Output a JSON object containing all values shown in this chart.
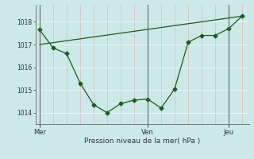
{
  "background_color": "#cce8e8",
  "grid_color_v": "#d8c0c0",
  "grid_color_h": "#e8f4f4",
  "line_color": "#1a5c1a",
  "xlabel": "Pression niveau de la mer( hPa )",
  "xtick_labels": [
    "Mer",
    "Ven",
    "Jeu"
  ],
  "xtick_positions": [
    0,
    8,
    14
  ],
  "ylim": [
    1013.5,
    1018.75
  ],
  "yticks": [
    1014,
    1015,
    1016,
    1017,
    1018
  ],
  "line1_x": [
    0,
    1,
    2,
    3,
    4,
    5,
    6,
    7,
    8,
    9,
    10,
    11,
    12,
    13,
    14,
    15
  ],
  "line1_y": [
    1017.65,
    1016.85,
    1016.6,
    1015.3,
    1014.35,
    1014.0,
    1014.4,
    1014.55,
    1014.6,
    1014.2,
    1015.05,
    1017.1,
    1017.4,
    1017.4,
    1017.7,
    1018.25
  ],
  "line2_x": [
    0,
    15
  ],
  "line2_y": [
    1017.0,
    1018.25
  ],
  "xlim": [
    -0.3,
    15.5
  ],
  "num_v_grid": 16,
  "figsize": [
    3.2,
    2.0
  ],
  "dpi": 100
}
